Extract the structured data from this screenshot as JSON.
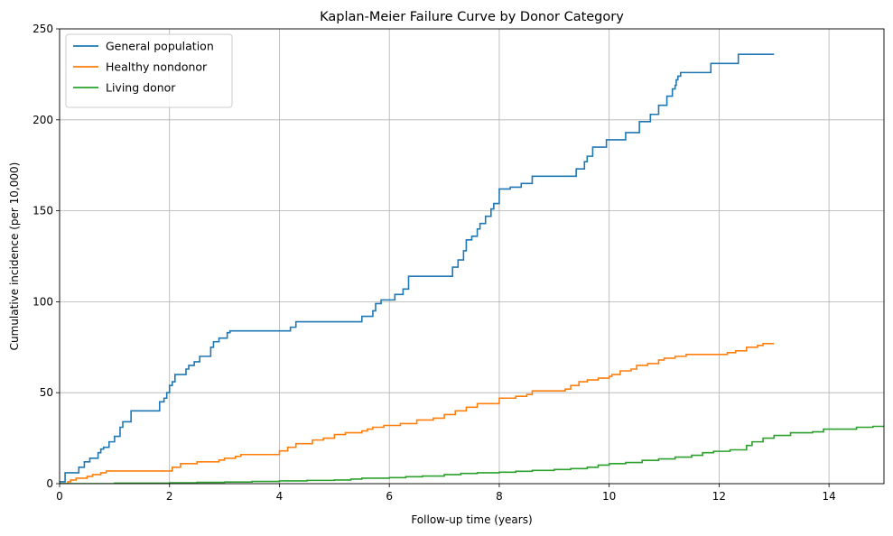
{
  "chart_data": {
    "type": "line",
    "step": true,
    "title": "Kaplan-Meier Failure Curve by Donor Category",
    "xlabel": "Follow-up time (years)",
    "ylabel": "Cumulative incidence (per 10,000)",
    "xlim": [
      0,
      15
    ],
    "ylim": [
      0,
      250
    ],
    "xticks": [
      0,
      2,
      4,
      6,
      8,
      10,
      12,
      14
    ],
    "yticks": [
      0,
      50,
      100,
      150,
      200,
      250
    ],
    "grid": true,
    "legend_position": "top-left",
    "series": [
      {
        "name": "General population",
        "color": "#1f77b4",
        "x": [
          0,
          0.1,
          0.3,
          0.35,
          0.45,
          0.55,
          0.7,
          0.75,
          0.8,
          0.9,
          1.0,
          1.1,
          1.15,
          1.3,
          1.75,
          1.82,
          1.9,
          1.95,
          2.0,
          2.05,
          2.1,
          2.3,
          2.35,
          2.45,
          2.55,
          2.75,
          2.8,
          2.9,
          3.05,
          3.1,
          4.2,
          4.3,
          5.4,
          5.5,
          5.7,
          5.75,
          5.85,
          6.1,
          6.25,
          6.35,
          7.1,
          7.15,
          7.25,
          7.35,
          7.4,
          7.5,
          7.6,
          7.65,
          7.75,
          7.85,
          7.9,
          8.0,
          8.2,
          8.4,
          8.6,
          9.4,
          9.55,
          9.6,
          9.7,
          9.95,
          10.3,
          10.55,
          10.75,
          10.9,
          11.05,
          11.15,
          11.2,
          11.22,
          11.25,
          11.3,
          11.35,
          11.85,
          12.35,
          13.0
        ],
        "y": [
          1,
          6,
          6,
          9,
          12,
          14,
          17,
          19,
          20,
          23,
          26,
          31,
          34,
          40,
          40,
          45,
          47,
          50,
          54,
          56,
          60,
          63,
          65,
          67,
          70,
          75,
          78,
          80,
          83,
          84,
          86,
          89,
          89,
          92,
          95,
          99,
          101,
          104,
          107,
          114,
          114,
          119,
          123,
          128,
          134,
          136,
          140,
          143,
          147,
          151,
          154,
          162,
          163,
          165,
          169,
          173,
          177,
          180,
          185,
          189,
          193,
          199,
          203,
          208,
          213,
          217,
          219,
          222,
          224,
          226,
          226,
          231,
          236,
          236
        ]
      },
      {
        "name": "Healthy nondonor",
        "color": "#ff7f0e",
        "x": [
          0,
          0.15,
          0.2,
          0.3,
          0.5,
          0.6,
          0.75,
          0.85,
          1.95,
          2.05,
          2.2,
          2.5,
          2.9,
          3.0,
          3.2,
          3.3,
          3.9,
          4.0,
          4.15,
          4.3,
          4.6,
          4.8,
          5.0,
          5.2,
          5.5,
          5.6,
          5.7,
          5.9,
          6.2,
          6.5,
          6.8,
          7.0,
          7.2,
          7.4,
          7.6,
          7.9,
          8.0,
          8.3,
          8.5,
          8.6,
          9.0,
          9.2,
          9.3,
          9.45,
          9.6,
          9.8,
          10.0,
          10.05,
          10.2,
          10.4,
          10.5,
          10.7,
          10.9,
          11.0,
          11.2,
          11.4,
          12.0,
          12.15,
          12.3,
          12.5,
          12.7,
          12.8,
          13.0
        ],
        "y": [
          0,
          1,
          2,
          3,
          4,
          5,
          6,
          7,
          7,
          9,
          11,
          12,
          13,
          14,
          15,
          16,
          16,
          18,
          20,
          22,
          24,
          25,
          27,
          28,
          29,
          30,
          31,
          32,
          33,
          35,
          36,
          38,
          40,
          42,
          44,
          44,
          47,
          48,
          49,
          51,
          51,
          52,
          54,
          56,
          57,
          58,
          59,
          60,
          62,
          63,
          65,
          66,
          68,
          69,
          70,
          71,
          71,
          72,
          73,
          75,
          76,
          77,
          77
        ]
      },
      {
        "name": "Living donor",
        "color": "#2ca02c",
        "x": [
          0,
          0.5,
          1.0,
          2.0,
          2.5,
          3.0,
          3.5,
          4.0,
          4.5,
          5.0,
          5.3,
          5.5,
          6.0,
          6.3,
          6.6,
          7.0,
          7.3,
          7.6,
          8.0,
          8.3,
          8.6,
          9.0,
          9.3,
          9.6,
          9.8,
          10.0,
          10.3,
          10.6,
          10.9,
          11.2,
          11.5,
          11.7,
          11.9,
          12.2,
          12.5,
          12.6,
          12.8,
          13.0,
          13.3,
          13.7,
          13.9,
          14.5,
          14.8,
          15.0
        ],
        "y": [
          0,
          0,
          0.3,
          0.5,
          0.7,
          0.9,
          1.2,
          1.5,
          1.8,
          2.0,
          2.5,
          3.0,
          3.3,
          3.8,
          4.2,
          5.0,
          5.6,
          6.0,
          6.3,
          6.8,
          7.3,
          7.8,
          8.3,
          9.0,
          10.2,
          11.0,
          11.6,
          12.8,
          13.6,
          14.6,
          15.6,
          17.0,
          17.8,
          18.6,
          21.0,
          23.0,
          25.0,
          26.5,
          28.0,
          28.5,
          30.0,
          31.0,
          31.5,
          32.0
        ]
      }
    ]
  }
}
